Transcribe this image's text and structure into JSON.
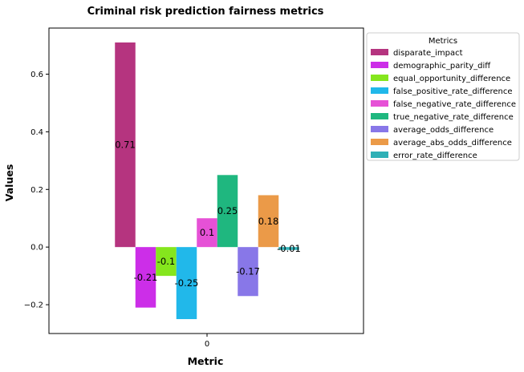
{
  "chart_data": {
    "type": "bar",
    "title": "Criminal risk prediction fairness metrics",
    "xlabel": "Metric",
    "ylabel": "Values",
    "categories": [
      "0"
    ],
    "ylim": [
      -0.3,
      0.76
    ],
    "yticks": [
      -0.2,
      0.0,
      0.2,
      0.4,
      0.6
    ],
    "ytick_labels": [
      "−0.2",
      "0.0",
      "0.2",
      "0.4",
      "0.6"
    ],
    "grid": false,
    "legend_title": "Metrics",
    "legend_position": "outside-right-top",
    "series": [
      {
        "name": "disparate_impact",
        "values": [
          0.71
        ],
        "label": "0.71",
        "color": "#b5347f"
      },
      {
        "name": "demographic_parity_diff",
        "values": [
          -0.21
        ],
        "label": "-0.21",
        "color": "#cc2ee8"
      },
      {
        "name": "equal_opportunity_difference",
        "values": [
          -0.1
        ],
        "label": "-0.1",
        "color": "#85e61d"
      },
      {
        "name": "false_positive_rate_difference",
        "values": [
          -0.25
        ],
        "label": "-0.25",
        "color": "#21b8ea"
      },
      {
        "name": "false_negative_rate_difference",
        "values": [
          0.1
        ],
        "label": "0.1",
        "color": "#e651d6"
      },
      {
        "name": "true_negative_rate_difference",
        "values": [
          0.25
        ],
        "label": "0.25",
        "color": "#1fb77f"
      },
      {
        "name": "average_odds_difference",
        "values": [
          -0.17
        ],
        "label": "-0.17",
        "color": "#8877e8"
      },
      {
        "name": "average_abs_odds_difference",
        "values": [
          0.18
        ],
        "label": "0.18",
        "color": "#eb9a48"
      },
      {
        "name": "error_rate_difference",
        "values": [
          -0.01
        ],
        "label": "-0.01",
        "color": "#2fb0b6"
      }
    ]
  }
}
